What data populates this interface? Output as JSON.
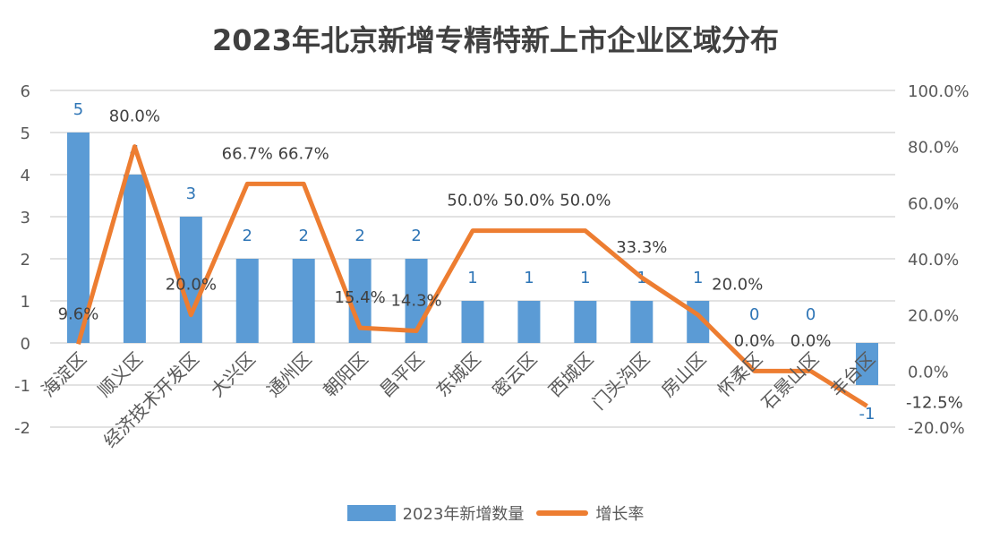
{
  "chart_data": {
    "type": "bar+line",
    "title": "2023年北京新增专精特新上市企业区域分布",
    "categories": [
      "海淀区",
      "顺义区",
      "经济技术开发区",
      "大兴区",
      "通州区",
      "朝阳区",
      "昌平区",
      "东城区",
      "密云区",
      "西城区",
      "门头沟区",
      "房山区",
      "怀柔区",
      "石景山区",
      "丰台区"
    ],
    "series": [
      {
        "name": "2023年新增数量",
        "type": "bar",
        "axis": "left",
        "color": "#5b9bd5",
        "values": [
          5,
          4,
          3,
          2,
          2,
          2,
          2,
          1,
          1,
          1,
          1,
          1,
          0,
          0,
          -1
        ]
      },
      {
        "name": "增长率",
        "type": "line",
        "axis": "right",
        "color": "#ed7d31",
        "values": [
          9.6,
          80.0,
          20.0,
          66.7,
          66.7,
          15.4,
          14.3,
          50.0,
          50.0,
          50.0,
          33.3,
          20.0,
          0.0,
          0.0,
          -12.5
        ]
      }
    ],
    "left_axis": {
      "ylim": [
        -2,
        6
      ],
      "ticks": [
        "6",
        "5",
        "4",
        "3",
        "2",
        "1",
        "0",
        "-1",
        "-2"
      ]
    },
    "right_axis": {
      "ylim": [
        -20,
        100
      ],
      "ticks": [
        "100.0%",
        "80.0%",
        "60.0%",
        "40.0%",
        "20.0%",
        "0.0%",
        "-20.0%"
      ]
    },
    "bar_labels": [
      "5",
      "4",
      "3",
      "2",
      "2",
      "2",
      "2",
      "1",
      "1",
      "1",
      "1",
      "1",
      "0",
      "0",
      "-1"
    ],
    "line_labels": [
      "9.6%",
      "80.0%",
      "20.0%",
      "66.7%",
      "66.7%",
      "15.4%",
      "14.3%",
      "50.0%",
      "50.0%",
      "50.0%",
      "33.3%",
      "20.0%",
      "0.0%",
      "0.0%",
      "-12.5%"
    ],
    "grid": true,
    "legend": "bottom"
  }
}
